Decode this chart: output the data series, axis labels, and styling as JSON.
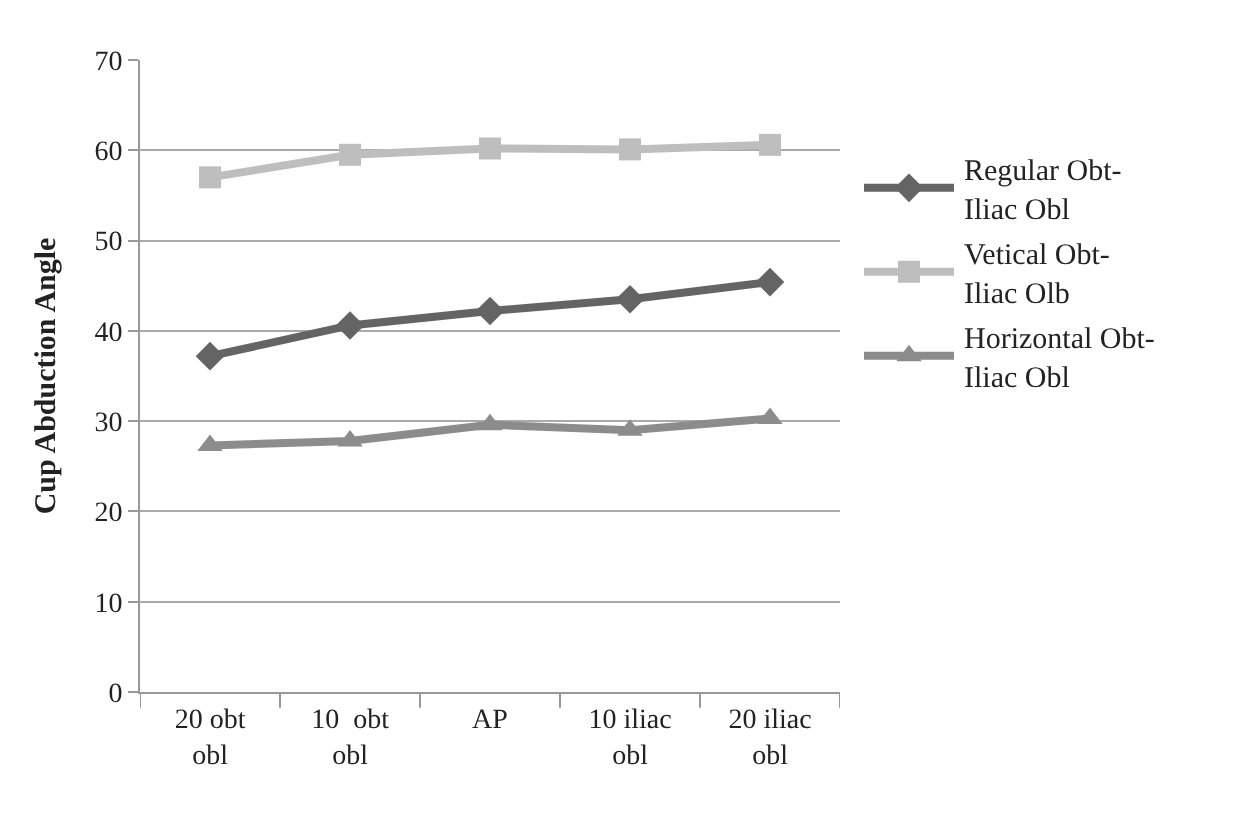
{
  "chart_data": {
    "type": "line",
    "ylabel": "Cup Abduction Angle",
    "categories": [
      "20 obt obl",
      "10  obt obl",
      "AP",
      "10 iliac obl",
      "20 iliac obl"
    ],
    "series": [
      {
        "name": "Regular Obt-Iliac Obl",
        "color": "#646464",
        "marker": "diamond",
        "values": [
          37.2,
          40.6,
          42.2,
          43.5,
          45.4
        ]
      },
      {
        "name": "Vetical Obt-Iliac Olb",
        "color": "#bebebe",
        "marker": "square",
        "values": [
          57.0,
          59.5,
          60.2,
          60.1,
          60.6
        ]
      },
      {
        "name": "Horizontal Obt-Iliac Obl",
        "color": "#8c8c8c",
        "marker": "triangle",
        "values": [
          27.3,
          27.8,
          29.6,
          29.0,
          30.3
        ]
      }
    ],
    "ylim": [
      0,
      70
    ],
    "yticks": [
      0,
      10,
      20,
      30,
      40,
      50,
      60,
      70
    ],
    "grid": "y",
    "legend": "right",
    "line_style": "solid"
  }
}
